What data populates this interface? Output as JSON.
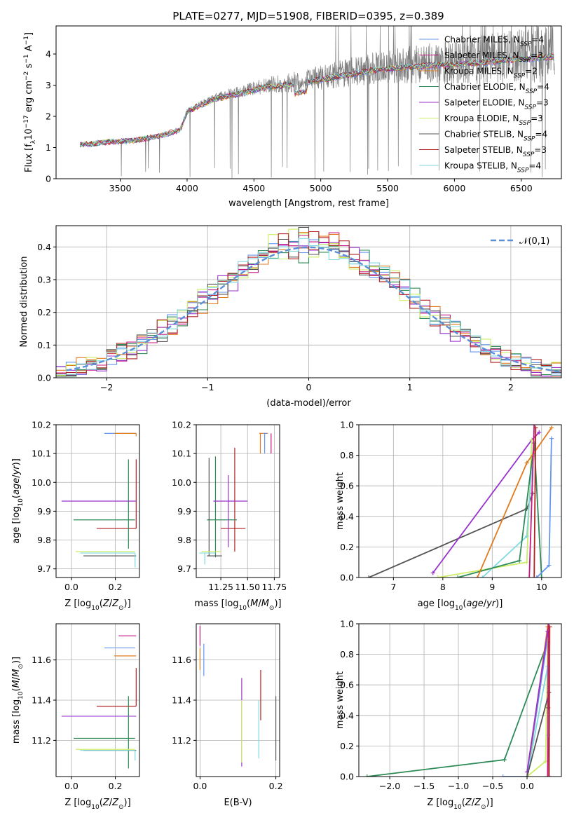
{
  "title": "PLATE=0277, MJD=51908, FIBERID=0395, z=0.389",
  "colors": {
    "Chabrier MILES": "#6495ed",
    "Salpeter MILES": "#c71585",
    "Kroupa MILES": "#e07b20",
    "Chabrier ELODIE": "#2e8b57",
    "Salpeter ELODIE": "#9932cc",
    "Kroupa ELODIE": "#ccee66",
    "Chabrier STELIB": "#555555",
    "Salpeter STELIB": "#b22222",
    "Kroupa STELIB": "#80d8e0",
    "data": "#808080",
    "gauss": "#5b8fd6"
  },
  "chart_data": [
    {
      "id": "spectrum",
      "type": "line",
      "xlabel": "wavelength [Angstrom, rest frame]",
      "ylabel": "Flux [f$_\\lambda$10$^{-17}$ erg cm$^{-2}$ s$^{-1}$ A$^{-1}$]",
      "xlim": [
        3020,
        6800
      ],
      "ylim": [
        0,
        4.9
      ],
      "xticks": [
        3500,
        4000,
        4500,
        5000,
        5500,
        6000,
        6500
      ],
      "yticks": [
        0,
        1,
        2,
        3,
        4
      ],
      "legend": "top-right",
      "legend_entries": [
        {
          "model": "Chabrier MILES",
          "prefix": "Chabrier MILES, N",
          "sub": "SSP",
          "suffix": "=4"
        },
        {
          "model": "Salpeter MILES",
          "prefix": "Salpeter MILES, N",
          "sub": "SSP",
          "suffix": "=3"
        },
        {
          "model": "Kroupa MILES",
          "prefix": "Kroupa MILES, N",
          "sub": "SSP",
          "suffix": "=2"
        },
        {
          "model": "Chabrier ELODIE",
          "prefix": "Chabrier ELODIE, N",
          "sub": "SSP",
          "suffix": "=4"
        },
        {
          "model": "Salpeter ELODIE",
          "prefix": "Salpeter ELODIE, N",
          "sub": "SSP",
          "suffix": "=3"
        },
        {
          "model": "Kroupa ELODIE",
          "prefix": "Kroupa ELODIE, N",
          "sub": "SSP",
          "suffix": "=3"
        },
        {
          "model": "Chabrier STELIB",
          "prefix": "Chabrier STELIB, N",
          "sub": "SSP",
          "suffix": "=4"
        },
        {
          "model": "Salpeter STELIB",
          "prefix": "Salpeter STELIB, N",
          "sub": "SSP",
          "suffix": "=3"
        },
        {
          "model": "Kroupa STELIB",
          "prefix": "Kroupa STELIB, N",
          "sub": "SSP",
          "suffix": "=4"
        }
      ],
      "continuum": {
        "x": [
          3200,
          3400,
          3600,
          3800,
          3950,
          4000,
          4200,
          4400,
          4600,
          4800,
          5000,
          5200,
          5400,
          5600,
          5800,
          6000,
          6200,
          6400,
          6600,
          6750
        ],
        "y": [
          1.1,
          1.2,
          1.25,
          1.4,
          1.6,
          2.2,
          2.6,
          2.8,
          3.0,
          3.1,
          3.25,
          3.4,
          3.55,
          3.65,
          3.7,
          3.75,
          3.8,
          3.9,
          3.95,
          4.0
        ]
      }
    },
    {
      "id": "residuals",
      "type": "step",
      "xlabel": "(data-model)/error",
      "ylabel": "Normed distribution",
      "xlim": [
        -2.5,
        2.5
      ],
      "ylim": [
        0,
        0.465
      ],
      "xticks": [
        -2,
        -1,
        0,
        1,
        2
      ],
      "ytick_values": [
        0.0,
        0.1,
        0.2,
        0.3,
        0.4
      ],
      "ytick_labels": [
        "0.0",
        "0.1",
        "0.2",
        "0.3",
        "0.4"
      ],
      "grid": true,
      "legend": "top-right",
      "legend_label": "𝒩(0,1)",
      "gauss_mean": 0.0,
      "gauss_sigma": 1.0
    },
    {
      "id": "age_vs_Z",
      "type": "errorbar",
      "xlabel": "Z [log₁₀(Z/Z⊙)]",
      "ylabel": "age  [log₁₀(age/yr)]",
      "xlim": [
        -0.07,
        0.31
      ],
      "ylim": [
        9.67,
        10.2
      ],
      "xticks": [
        0.0,
        0.2
      ],
      "xtick_labels": [
        "0.0",
        "0.2"
      ],
      "yticks": [
        9.7,
        9.8,
        9.9,
        10.0,
        10.1,
        10.2
      ],
      "ytick_labels": [
        "9.7",
        "9.8",
        "9.9",
        "10.0",
        "10.1",
        "10.2"
      ],
      "grid": true,
      "points": [
        {
          "model": "Chabrier MILES",
          "x": 0.29,
          "xerr": [
            0.14,
            0.0
          ],
          "y": 10.17,
          "yerr": [
            0.0,
            0.0
          ]
        },
        {
          "model": "Kroupa MILES",
          "x": 0.295,
          "xerr": [
            0.1,
            0.0
          ],
          "y": 10.17,
          "yerr": [
            0.01,
            0.0
          ]
        },
        {
          "model": "Salpeter STELIB",
          "x": 0.295,
          "xerr": [
            0.18,
            0.0
          ],
          "y": 9.84,
          "yerr": [
            0.0,
            0.24
          ]
        },
        {
          "model": "Chabrier ELODIE",
          "x": 0.26,
          "xerr": [
            0.25,
            0.03
          ],
          "y": 9.87,
          "yerr": [
            0.1,
            0.21
          ]
        },
        {
          "model": "Salpeter ELODIE",
          "x": 0.295,
          "xerr": [
            0.34,
            0.0
          ],
          "y": 9.935,
          "yerr": [
            0.0,
            0.0
          ]
        },
        {
          "model": "Kroupa ELODIE",
          "x": 0.27,
          "xerr": [
            0.25,
            0.02
          ],
          "y": 9.76,
          "yerr": [
            0.0,
            0.0
          ]
        },
        {
          "model": "Chabrier STELIB",
          "x": 0.295,
          "xerr": [
            0.24,
            0.0
          ],
          "y": 9.745,
          "yerr": [
            0.0,
            0.0
          ]
        },
        {
          "model": "Kroupa STELIB",
          "x": 0.29,
          "xerr": [
            0.25,
            0.0
          ],
          "y": 9.755,
          "yerr": [
            0.05,
            0.0
          ]
        }
      ]
    },
    {
      "id": "age_vs_mass",
      "type": "errorbar",
      "xlabel": "mass [log₁₀(M/M⊙)]",
      "ylabel": "",
      "xlim": [
        11.02,
        11.8
      ],
      "ylim": [
        9.67,
        10.2
      ],
      "xticks": [
        11.25,
        11.5,
        11.75
      ],
      "xtick_labels": [
        "11.25",
        "11.50",
        "11.75"
      ],
      "yticks": [
        9.7,
        9.8,
        9.9,
        10.0,
        10.1,
        10.2
      ],
      "ytick_labels": [
        "9.7",
        "9.8",
        "9.9",
        "10.0",
        "10.1",
        "10.2"
      ],
      "grid": true,
      "points": [
        {
          "model": "Kroupa MILES",
          "x": 11.62,
          "xerr": [
            0.01,
            0.07
          ],
          "y": 10.17,
          "yerr": [
            0.07,
            0.0
          ]
        },
        {
          "model": "Chabrier MILES",
          "x": 11.66,
          "xerr": [
            0.01,
            0.02
          ],
          "y": 10.17,
          "yerr": [
            0.07,
            0.0
          ]
        },
        {
          "model": "Salpeter MILES",
          "x": 11.72,
          "xerr": [
            0.0,
            0.0
          ],
          "y": 10.17,
          "yerr": [
            0.07,
            0.0
          ]
        },
        {
          "model": "Salpeter STELIB",
          "x": 11.38,
          "xerr": [
            0.13,
            0.1
          ],
          "y": 9.84,
          "yerr": [
            0.08,
            0.28
          ]
        },
        {
          "model": "Chabrier ELODIE",
          "x": 11.2,
          "xerr": [
            0.08,
            0.2
          ],
          "y": 9.87,
          "yerr": [
            0.13,
            0.22
          ]
        },
        {
          "model": "Salpeter ELODIE",
          "x": 11.32,
          "xerr": [
            0.14,
            0.18
          ],
          "y": 9.935,
          "yerr": [
            0.16,
            0.09
          ]
        },
        {
          "model": "Chabrier STELIB",
          "x": 11.14,
          "xerr": [
            0.02,
            0.12
          ],
          "y": 9.745,
          "yerr": [
            0.0,
            0.34
          ]
        },
        {
          "model": "Kroupa ELODIE",
          "x": 11.15,
          "xerr": [
            0.08,
            0.1
          ],
          "y": 9.76,
          "yerr": [
            0.0,
            0.0
          ]
        },
        {
          "model": "Kroupa STELIB",
          "x": 11.1,
          "xerr": [
            0.05,
            0.1
          ],
          "y": 9.755,
          "yerr": [
            0.04,
            0.0
          ]
        }
      ]
    },
    {
      "id": "weight_vs_age",
      "type": "line",
      "xlabel": "age  [log₁₀(age/yr)]",
      "ylabel": "mass weight",
      "xlim": [
        6.3,
        10.4
      ],
      "ylim": [
        0.0,
        1.0
      ],
      "xticks": [
        7,
        8,
        9,
        10
      ],
      "yticks": [
        0.0,
        0.2,
        0.4,
        0.6,
        0.8,
        1.0
      ],
      "ytick_labels": [
        "0.0",
        "0.2",
        "0.4",
        "0.6",
        "0.8",
        "1.0"
      ],
      "grid": true,
      "series": [
        {
          "model": "Chabrier STELIB",
          "x": [
            6.5,
            9.7,
            9.82
          ],
          "y": [
            0.0,
            0.45,
            0.55
          ]
        },
        {
          "model": "Salpeter ELODIE",
          "x": [
            7.8,
            9.8,
            9.95
          ],
          "y": [
            0.03,
            0.9,
            0.95
          ]
        },
        {
          "model": "Kroupa ELODIE",
          "x": [
            7.9,
            9.7,
            9.8
          ],
          "y": [
            0.0,
            0.1,
            0.9
          ]
        },
        {
          "model": "Kroupa STELIB",
          "x": [
            8.8,
            9.7,
            9.8
          ],
          "y": [
            0.0,
            0.27,
            0.72
          ]
        },
        {
          "model": "Chabrier ELODIE",
          "x": [
            8.3,
            9.55,
            9.85,
            10.0
          ],
          "y": [
            0.0,
            0.11,
            0.88,
            0.0
          ]
        },
        {
          "model": "Kroupa MILES",
          "x": [
            8.7,
            9.7,
            10.2
          ],
          "y": [
            0.0,
            0.75,
            0.98
          ]
        },
        {
          "model": "Salpeter MILES",
          "x": [
            9.75,
            9.85
          ],
          "y": [
            0.0,
            1.0
          ]
        },
        {
          "model": "Salpeter STELIB",
          "x": [
            9.85,
            9.88
          ],
          "y": [
            0.0,
            0.98
          ]
        },
        {
          "model": "Chabrier MILES",
          "x": [
            9.9,
            10.15,
            10.2
          ],
          "y": [
            0.0,
            0.08,
            0.91
          ]
        }
      ]
    },
    {
      "id": "mass_vs_Z",
      "type": "errorbar",
      "xlabel": "Z [log₁₀(Z/Z⊙)]",
      "ylabel": "mass [log₁₀(M/M⊙)]",
      "xlim": [
        -0.07,
        0.31
      ],
      "ylim": [
        11.02,
        11.78
      ],
      "xticks": [
        0.0,
        0.2
      ],
      "xtick_labels": [
        "0.0",
        "0.2"
      ],
      "yticks": [
        11.2,
        11.4,
        11.6
      ],
      "ytick_labels": [
        "11.2",
        "11.4",
        "11.6"
      ],
      "grid": true,
      "points": [
        {
          "model": "Salpeter MILES",
          "x": 0.295,
          "xerr": [
            0.08,
            0.0
          ],
          "y": 11.72,
          "yerr": [
            0.0,
            0.0
          ]
        },
        {
          "model": "Chabrier MILES",
          "x": 0.29,
          "xerr": [
            0.14,
            0.0
          ],
          "y": 11.66,
          "yerr": [
            0.0,
            0.0
          ]
        },
        {
          "model": "Kroupa MILES",
          "x": 0.295,
          "xerr": [
            0.1,
            0.0
          ],
          "y": 11.62,
          "yerr": [
            0.0,
            0.0
          ]
        },
        {
          "model": "Salpeter STELIB",
          "x": 0.295,
          "xerr": [
            0.18,
            0.0
          ],
          "y": 11.37,
          "yerr": [
            0.0,
            0.19
          ]
        },
        {
          "model": "Salpeter ELODIE",
          "x": 0.295,
          "xerr": [
            0.34,
            0.0
          ],
          "y": 11.32,
          "yerr": [
            0.0,
            0.0
          ]
        },
        {
          "model": "Chabrier ELODIE",
          "x": 0.26,
          "xerr": [
            0.25,
            0.03
          ],
          "y": 11.21,
          "yerr": [
            0.15,
            0.21
          ]
        },
        {
          "model": "Kroupa ELODIE",
          "x": 0.27,
          "xerr": [
            0.25,
            0.02
          ],
          "y": 11.155,
          "yerr": [
            0.0,
            0.0
          ]
        },
        {
          "model": "Chabrier STELIB",
          "x": 0.295,
          "xerr": [
            0.24,
            0.0
          ],
          "y": 11.15,
          "yerr": [
            0.0,
            0.0
          ]
        },
        {
          "model": "Kroupa STELIB",
          "x": 0.29,
          "xerr": [
            0.25,
            0.0
          ],
          "y": 11.15,
          "yerr": [
            0.05,
            0.0
          ]
        }
      ]
    },
    {
      "id": "mass_vs_ebv",
      "type": "errorbar",
      "xlabel": "E(B-V)",
      "ylabel": "",
      "xlim": [
        -0.01,
        0.21
      ],
      "ylim": [
        11.02,
        11.78
      ],
      "xticks": [
        0.0,
        0.2
      ],
      "xtick_labels": [
        "0.0",
        "0.2"
      ],
      "yticks": [
        11.2,
        11.4,
        11.6
      ],
      "ytick_labels": [
        "11.2",
        "11.4",
        "11.6"
      ],
      "grid": true,
      "points": [
        {
          "model": "Salpeter MILES",
          "x": 0.0,
          "xerr": [
            0.0,
            0.0
          ],
          "y": 11.72,
          "yerr": [
            0.05,
            0.05
          ]
        },
        {
          "model": "Kroupa MILES",
          "x": 0.0,
          "xerr": [
            0.0,
            0.0
          ],
          "y": 11.6,
          "yerr": [
            0.05,
            0.06
          ]
        },
        {
          "model": "Chabrier MILES",
          "x": 0.01,
          "xerr": [
            0.0,
            0.0
          ],
          "y": 11.6,
          "yerr": [
            0.08,
            0.08
          ]
        },
        {
          "model": "Salpeter ELODIE",
          "x": 0.11,
          "xerr": [
            0.0,
            0.0
          ],
          "y": 11.32,
          "yerr": [
            0.25,
            0.19
          ]
        },
        {
          "model": "Kroupa ELODIE",
          "x": 0.11,
          "xerr": [
            0.0,
            0.0
          ],
          "y": 11.24,
          "yerr": [
            0.15,
            0.16
          ]
        },
        {
          "model": "Salpeter STELIB",
          "x": 0.16,
          "xerr": [
            0.0,
            0.0
          ],
          "y": 11.42,
          "yerr": [
            0.12,
            0.13
          ]
        },
        {
          "model": "Kroupa STELIB",
          "x": 0.155,
          "xerr": [
            0.0,
            0.0
          ],
          "y": 11.26,
          "yerr": [
            0.15,
            0.14
          ]
        },
        {
          "model": "Chabrier STELIB",
          "x": 0.2,
          "xerr": [
            0.0,
            0.0
          ],
          "y": 11.26,
          "yerr": [
            0.16,
            0.16
          ]
        }
      ]
    },
    {
      "id": "weight_vs_Z",
      "type": "line",
      "xlabel": "Z [log₁₀(Z/Z⊙)]",
      "ylabel": "mass weight",
      "xlim": [
        -2.45,
        0.5
      ],
      "ylim": [
        0.0,
        1.0
      ],
      "xticks": [
        -2.0,
        -1.5,
        -1.0,
        -0.5,
        0.0
      ],
      "xtick_labels": [
        "−2.0",
        "−1.5",
        "−1.0",
        "−0.5",
        "0.0"
      ],
      "yticks": [
        0.0,
        0.2,
        0.4,
        0.6,
        0.8,
        1.0
      ],
      "ytick_labels": [
        "0.0",
        "0.2",
        "0.4",
        "0.6",
        "0.8",
        "1.0"
      ],
      "grid": true,
      "series": [
        {
          "model": "Chabrier ELODIE",
          "x": [
            -2.33,
            -0.33,
            0.3,
            0.32
          ],
          "y": [
            0.0,
            0.11,
            0.88,
            0.0
          ]
        },
        {
          "model": "Chabrier MILES",
          "x": [
            -0.35,
            0.0,
            0.3
          ],
          "y": [
            0.0,
            0.0,
            0.91
          ]
        },
        {
          "model": "Kroupa ELODIE",
          "x": [
            0.0,
            0.27,
            0.3
          ],
          "y": [
            0.0,
            0.1,
            0.9
          ]
        },
        {
          "model": "Kroupa MILES",
          "x": [
            0.0,
            0.3
          ],
          "y": [
            0.0,
            0.98
          ]
        },
        {
          "model": "Kroupa STELIB",
          "x": [
            0.0,
            0.3,
            0.31
          ],
          "y": [
            0.0,
            0.72,
            0.27
          ]
        },
        {
          "model": "Salpeter ELODIE",
          "x": [
            0.0,
            0.3
          ],
          "y": [
            0.03,
            0.95
          ]
        },
        {
          "model": "Chabrier STELIB",
          "x": [
            0.0,
            0.32,
            0.31
          ],
          "y": [
            0.0,
            0.55,
            0.45
          ]
        },
        {
          "model": "Salpeter MILES",
          "x": [
            0.3,
            0.31
          ],
          "y": [
            0.0,
            1.0
          ]
        },
        {
          "model": "Salpeter STELIB",
          "x": [
            0.32,
            0.33
          ],
          "y": [
            0.0,
            0.98
          ]
        }
      ]
    }
  ]
}
